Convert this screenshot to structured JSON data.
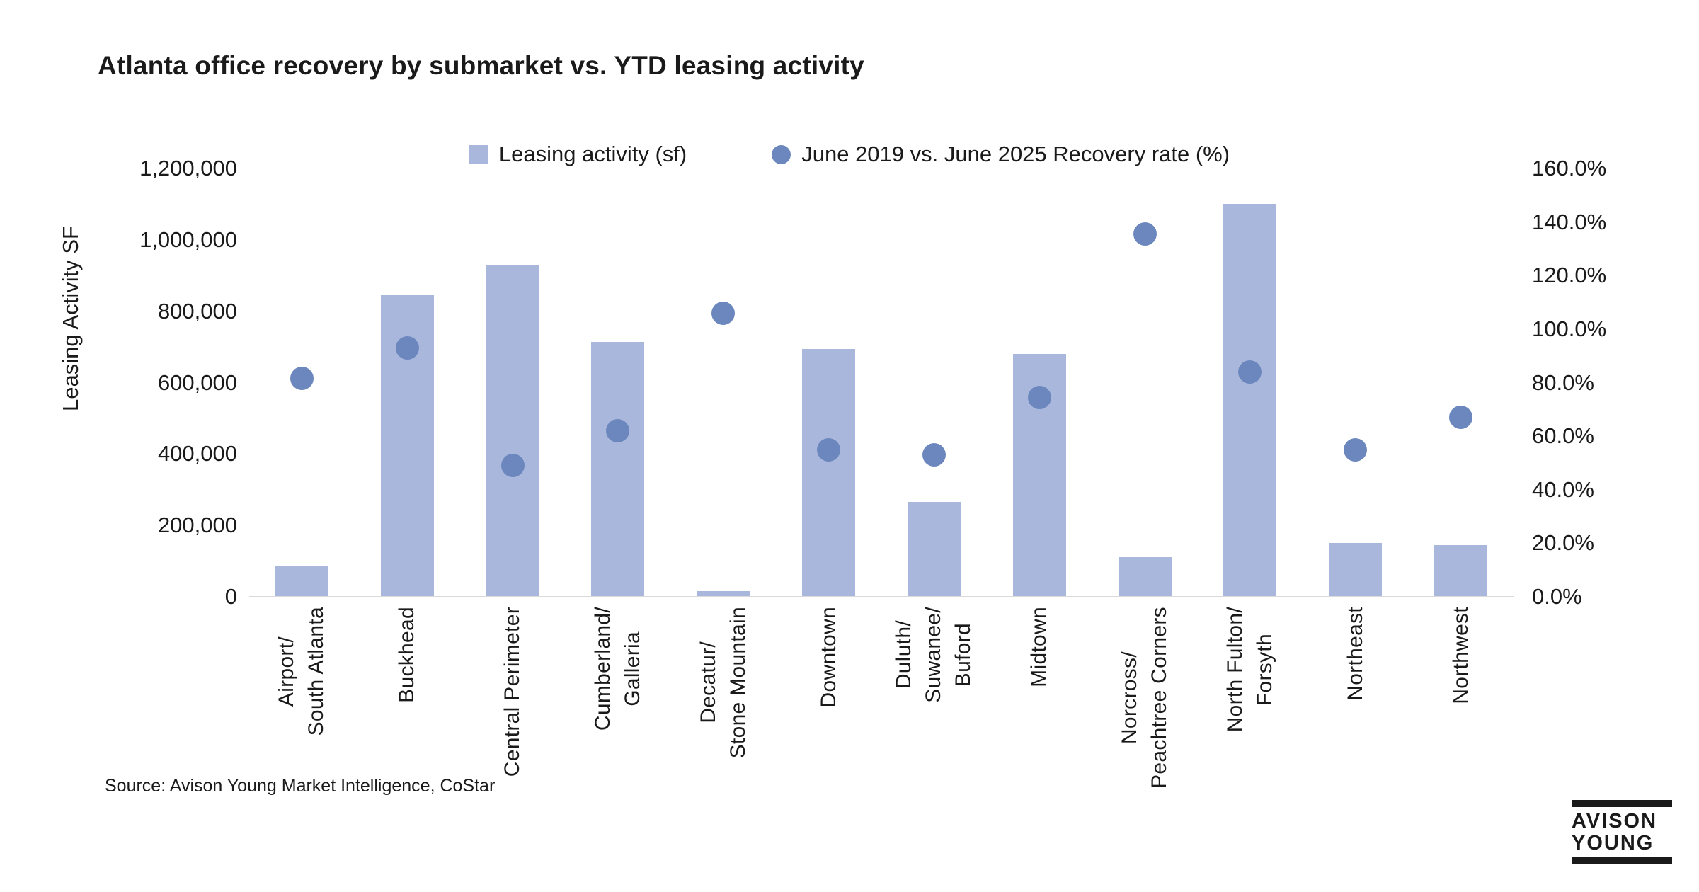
{
  "title": "Atlanta office recovery by submarket vs. YTD leasing activity",
  "legend": {
    "items": [
      {
        "label": "Leasing activity (sf)",
        "marker": "square",
        "color": "#A8B7DB"
      },
      {
        "label": "June 2019 vs. June 2025 Recovery rate (%)",
        "marker": "circle",
        "color": "#6B87BD"
      }
    ]
  },
  "source": "Source: Avison Young Market Intelligence, CoStar",
  "logo": {
    "line1": "AVISON",
    "line2": "YOUNG"
  },
  "colors": {
    "bar": "#A8B7DB",
    "dot": "#6B87BD",
    "axis_line": "#D9D9D9",
    "text": "#1A1A1A"
  },
  "chart_data": {
    "type": "combo",
    "title": "Atlanta office recovery by submarket vs. YTD leasing activity",
    "categories": [
      [
        "Airport/",
        "South Atlanta"
      ],
      [
        "Buckhead"
      ],
      [
        "Central Perimeter"
      ],
      [
        "Cumberland/",
        "Galleria"
      ],
      [
        "Decatur/",
        "Stone Mountain"
      ],
      [
        "Downtown"
      ],
      [
        "Duluth/",
        "Suwanee/",
        "Buford"
      ],
      [
        "Midtown"
      ],
      [
        "Norcross/",
        "Peachtree Corners"
      ],
      [
        "North Fulton/",
        "Forsyth"
      ],
      [
        "Northeast"
      ],
      [
        "Northwest"
      ]
    ],
    "series": [
      {
        "name": "Leasing activity (sf)",
        "type": "bar",
        "axis": "left",
        "color": "#A8B7DB",
        "values": [
          88000,
          845000,
          930000,
          715000,
          15000,
          695000,
          265000,
          680000,
          112000,
          1100000,
          150000,
          145000
        ]
      },
      {
        "name": "June 2019 vs. June 2025 Recovery rate (%)",
        "type": "scatter",
        "axis": "right",
        "color": "#6B87BD",
        "values": [
          81.5,
          93,
          49,
          62,
          106,
          55,
          53,
          74.5,
          135.5,
          84,
          55,
          67
        ]
      }
    ],
    "left_axis": {
      "title": "Leasing Activity SF",
      "ticks": [
        "0",
        "200,000",
        "400,000",
        "600,000",
        "800,000",
        "1,000,000",
        "1,200,000"
      ],
      "range": [
        0,
        1200000
      ]
    },
    "right_axis": {
      "title": "",
      "ticks": [
        "0.0%",
        "20.0%",
        "40.0%",
        "60.0%",
        "80.0%",
        "100.0%",
        "120.0%",
        "140.0%",
        "160.0%"
      ],
      "range": [
        0,
        160
      ]
    },
    "grid": false,
    "legend_position": "top"
  }
}
